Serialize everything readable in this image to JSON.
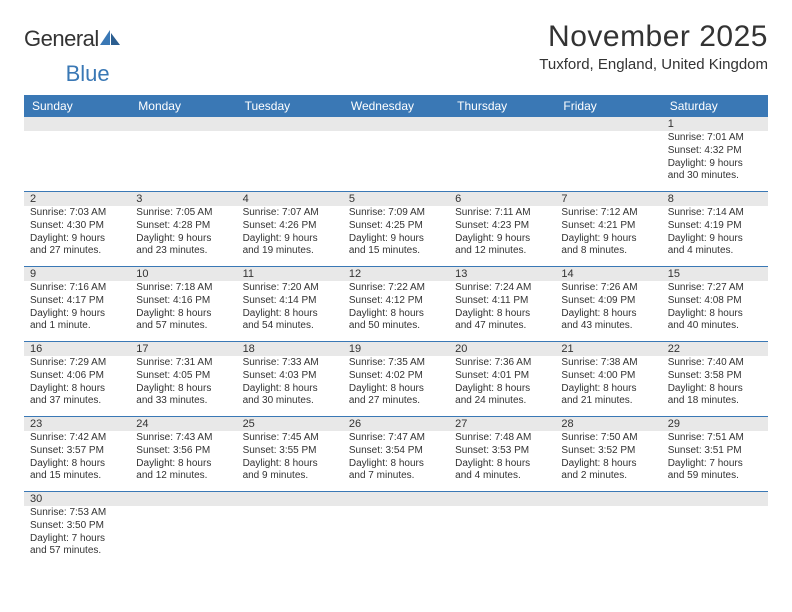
{
  "logo": {
    "text1": "General",
    "text2": "Blue"
  },
  "header": {
    "title": "November 2025",
    "location": "Tuxford, England, United Kingdom"
  },
  "colors": {
    "header_bg": "#3a78b5",
    "header_text": "#ffffff",
    "daynum_bg": "#e8e8e8",
    "text": "#333333",
    "week_divider": "#3a78b5",
    "page_bg": "#ffffff"
  },
  "dayHeaders": [
    "Sunday",
    "Monday",
    "Tuesday",
    "Wednesday",
    "Thursday",
    "Friday",
    "Saturday"
  ],
  "weeks": [
    [
      null,
      null,
      null,
      null,
      null,
      null,
      {
        "n": "1",
        "sr": "Sunrise: 7:01 AM",
        "ss": "Sunset: 4:32 PM",
        "dl": "Daylight: 9 hours and 30 minutes."
      }
    ],
    [
      {
        "n": "2",
        "sr": "Sunrise: 7:03 AM",
        "ss": "Sunset: 4:30 PM",
        "dl": "Daylight: 9 hours and 27 minutes."
      },
      {
        "n": "3",
        "sr": "Sunrise: 7:05 AM",
        "ss": "Sunset: 4:28 PM",
        "dl": "Daylight: 9 hours and 23 minutes."
      },
      {
        "n": "4",
        "sr": "Sunrise: 7:07 AM",
        "ss": "Sunset: 4:26 PM",
        "dl": "Daylight: 9 hours and 19 minutes."
      },
      {
        "n": "5",
        "sr": "Sunrise: 7:09 AM",
        "ss": "Sunset: 4:25 PM",
        "dl": "Daylight: 9 hours and 15 minutes."
      },
      {
        "n": "6",
        "sr": "Sunrise: 7:11 AM",
        "ss": "Sunset: 4:23 PM",
        "dl": "Daylight: 9 hours and 12 minutes."
      },
      {
        "n": "7",
        "sr": "Sunrise: 7:12 AM",
        "ss": "Sunset: 4:21 PM",
        "dl": "Daylight: 9 hours and 8 minutes."
      },
      {
        "n": "8",
        "sr": "Sunrise: 7:14 AM",
        "ss": "Sunset: 4:19 PM",
        "dl": "Daylight: 9 hours and 4 minutes."
      }
    ],
    [
      {
        "n": "9",
        "sr": "Sunrise: 7:16 AM",
        "ss": "Sunset: 4:17 PM",
        "dl": "Daylight: 9 hours and 1 minute."
      },
      {
        "n": "10",
        "sr": "Sunrise: 7:18 AM",
        "ss": "Sunset: 4:16 PM",
        "dl": "Daylight: 8 hours and 57 minutes."
      },
      {
        "n": "11",
        "sr": "Sunrise: 7:20 AM",
        "ss": "Sunset: 4:14 PM",
        "dl": "Daylight: 8 hours and 54 minutes."
      },
      {
        "n": "12",
        "sr": "Sunrise: 7:22 AM",
        "ss": "Sunset: 4:12 PM",
        "dl": "Daylight: 8 hours and 50 minutes."
      },
      {
        "n": "13",
        "sr": "Sunrise: 7:24 AM",
        "ss": "Sunset: 4:11 PM",
        "dl": "Daylight: 8 hours and 47 minutes."
      },
      {
        "n": "14",
        "sr": "Sunrise: 7:26 AM",
        "ss": "Sunset: 4:09 PM",
        "dl": "Daylight: 8 hours and 43 minutes."
      },
      {
        "n": "15",
        "sr": "Sunrise: 7:27 AM",
        "ss": "Sunset: 4:08 PM",
        "dl": "Daylight: 8 hours and 40 minutes."
      }
    ],
    [
      {
        "n": "16",
        "sr": "Sunrise: 7:29 AM",
        "ss": "Sunset: 4:06 PM",
        "dl": "Daylight: 8 hours and 37 minutes."
      },
      {
        "n": "17",
        "sr": "Sunrise: 7:31 AM",
        "ss": "Sunset: 4:05 PM",
        "dl": "Daylight: 8 hours and 33 minutes."
      },
      {
        "n": "18",
        "sr": "Sunrise: 7:33 AM",
        "ss": "Sunset: 4:03 PM",
        "dl": "Daylight: 8 hours and 30 minutes."
      },
      {
        "n": "19",
        "sr": "Sunrise: 7:35 AM",
        "ss": "Sunset: 4:02 PM",
        "dl": "Daylight: 8 hours and 27 minutes."
      },
      {
        "n": "20",
        "sr": "Sunrise: 7:36 AM",
        "ss": "Sunset: 4:01 PM",
        "dl": "Daylight: 8 hours and 24 minutes."
      },
      {
        "n": "21",
        "sr": "Sunrise: 7:38 AM",
        "ss": "Sunset: 4:00 PM",
        "dl": "Daylight: 8 hours and 21 minutes."
      },
      {
        "n": "22",
        "sr": "Sunrise: 7:40 AM",
        "ss": "Sunset: 3:58 PM",
        "dl": "Daylight: 8 hours and 18 minutes."
      }
    ],
    [
      {
        "n": "23",
        "sr": "Sunrise: 7:42 AM",
        "ss": "Sunset: 3:57 PM",
        "dl": "Daylight: 8 hours and 15 minutes."
      },
      {
        "n": "24",
        "sr": "Sunrise: 7:43 AM",
        "ss": "Sunset: 3:56 PM",
        "dl": "Daylight: 8 hours and 12 minutes."
      },
      {
        "n": "25",
        "sr": "Sunrise: 7:45 AM",
        "ss": "Sunset: 3:55 PM",
        "dl": "Daylight: 8 hours and 9 minutes."
      },
      {
        "n": "26",
        "sr": "Sunrise: 7:47 AM",
        "ss": "Sunset: 3:54 PM",
        "dl": "Daylight: 8 hours and 7 minutes."
      },
      {
        "n": "27",
        "sr": "Sunrise: 7:48 AM",
        "ss": "Sunset: 3:53 PM",
        "dl": "Daylight: 8 hours and 4 minutes."
      },
      {
        "n": "28",
        "sr": "Sunrise: 7:50 AM",
        "ss": "Sunset: 3:52 PM",
        "dl": "Daylight: 8 hours and 2 minutes."
      },
      {
        "n": "29",
        "sr": "Sunrise: 7:51 AM",
        "ss": "Sunset: 3:51 PM",
        "dl": "Daylight: 7 hours and 59 minutes."
      }
    ],
    [
      {
        "n": "30",
        "sr": "Sunrise: 7:53 AM",
        "ss": "Sunset: 3:50 PM",
        "dl": "Daylight: 7 hours and 57 minutes."
      },
      null,
      null,
      null,
      null,
      null,
      null
    ]
  ]
}
